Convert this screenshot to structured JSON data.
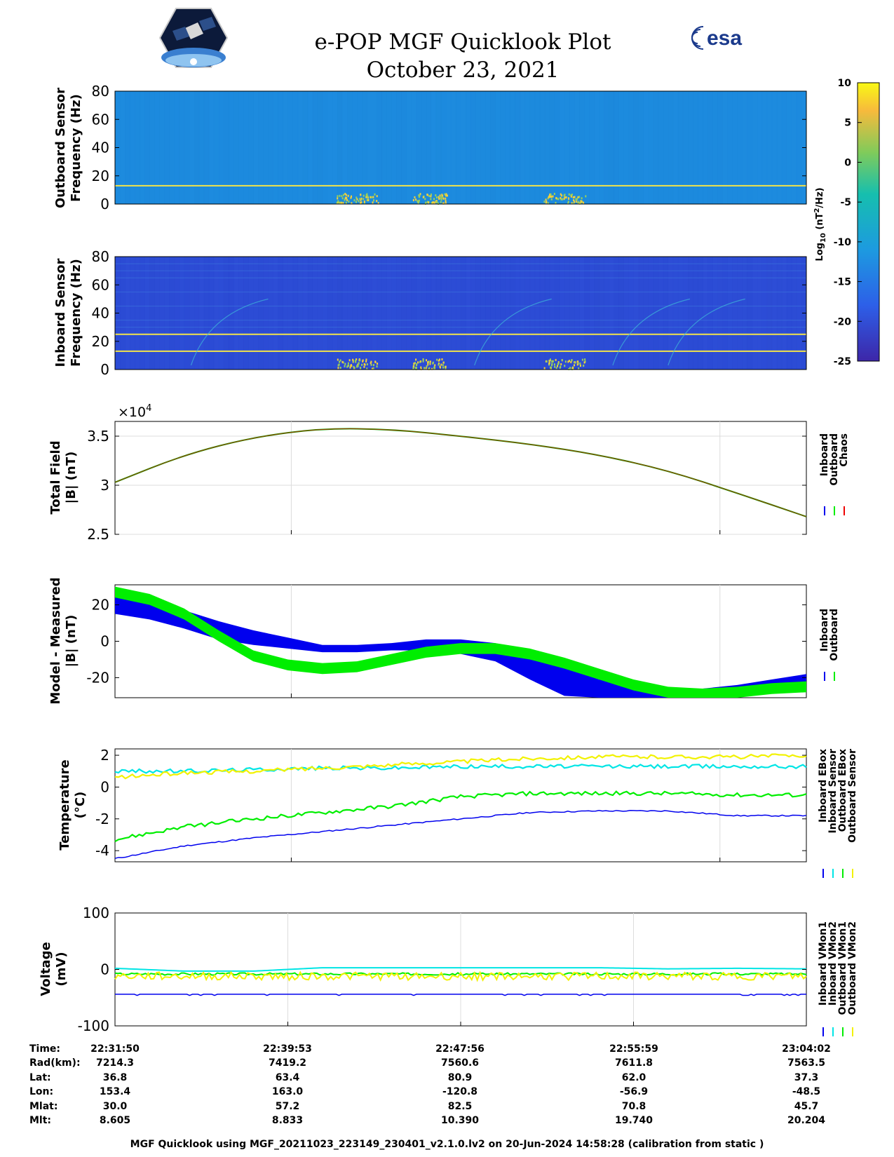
{
  "title": {
    "line1": "e-POP MGF Quicklook Plot",
    "line2": "October 23, 2021"
  },
  "logos": {
    "left": "cassiope-satellite-logo",
    "right_text": "esa"
  },
  "colors": {
    "inboard": "#0000ee",
    "outboard": "#00ee00",
    "chaos": "#ee0000",
    "cyan": "#00e5e5",
    "yellow": "#f2f200",
    "spec_bg_outboard": "#1e8de0",
    "spec_bg_inboard": "#2e4fd8"
  },
  "colorbar": {
    "label": "Log10 (nT2/Hz)",
    "label_main": "Log",
    "label_sub": "10",
    "label_units_a": " (nT",
    "label_units_sup": "2",
    "label_units_b": "/Hz)",
    "ticks": [
      10,
      5,
      0,
      -5,
      -10,
      -15,
      -20,
      -25
    ],
    "range": [
      -25,
      10
    ]
  },
  "chart_data": [
    {
      "type": "heatmap",
      "ylabel": [
        "Outboard Sensor",
        "Frequency (Hz)"
      ],
      "ylim": [
        0,
        80
      ],
      "yticks": [
        0,
        20,
        40,
        60,
        80
      ],
      "lines_hz": [
        13
      ]
    },
    {
      "type": "heatmap",
      "ylabel": [
        "Inboard Sensor",
        "Frequency (Hz)"
      ],
      "ylim": [
        0,
        80
      ],
      "yticks": [
        0,
        20,
        40,
        60,
        80
      ],
      "lines_hz": [
        13,
        25
      ]
    },
    {
      "type": "line",
      "ylabel": [
        "Total Field",
        "|B| (nT)"
      ],
      "multiplier": "×10",
      "multiplier_exp": "4",
      "ylim": [
        25000,
        36500
      ],
      "yticks": [
        25000,
        30000,
        35000
      ],
      "ytick_labels": [
        "2.5",
        "3",
        "3.5"
      ],
      "legend": [
        "Inboard",
        "Outboard",
        "Chaos"
      ],
      "x": [
        0,
        0.1,
        0.2,
        0.3,
        0.4,
        0.5,
        0.6,
        0.7,
        0.8,
        0.9,
        1.0
      ],
      "series": [
        {
          "name": "Chaos",
          "values": [
            30300,
            33100,
            34900,
            35800,
            35700,
            35000,
            34200,
            33100,
            31500,
            29200,
            26800
          ]
        }
      ]
    },
    {
      "type": "line",
      "ylabel": [
        "Model - Measured",
        "|B| (nT)"
      ],
      "ylim": [
        -31,
        31
      ],
      "yticks": [
        -20,
        0,
        20
      ],
      "legend": [
        "Inboard",
        "Outboard"
      ],
      "x": [
        0,
        0.05,
        0.1,
        0.15,
        0.2,
        0.25,
        0.3,
        0.35,
        0.4,
        0.45,
        0.5,
        0.55,
        0.6,
        0.65,
        0.7,
        0.75,
        0.8,
        0.85,
        0.9,
        0.95,
        1.0
      ],
      "series": [
        {
          "name": "Inboard",
          "values": [
            20,
            17,
            12,
            6,
            2,
            -1,
            -4,
            -4,
            -3,
            -2,
            -3,
            -6,
            -14,
            -22,
            -26,
            -28,
            -29,
            -28,
            -26,
            -24,
            -21
          ],
          "spread": [
            5,
            5,
            5,
            5,
            4,
            3,
            2,
            2,
            2,
            3,
            4,
            5,
            7,
            8,
            5,
            3,
            2,
            2,
            2,
            3,
            3
          ]
        },
        {
          "name": "Outboard",
          "values": [
            27,
            23,
            15,
            3,
            -8,
            -13,
            -15,
            -14,
            -10,
            -6,
            -4,
            -4,
            -7,
            -12,
            -18,
            -24,
            -28,
            -29,
            -28,
            -26,
            -25
          ],
          "spread": [
            3,
            3,
            3,
            3,
            3,
            3,
            3,
            3,
            3,
            3,
            3,
            3,
            3,
            3,
            3,
            3,
            3,
            3,
            3,
            3,
            3
          ]
        }
      ]
    },
    {
      "type": "line",
      "ylabel": [
        "Temperature",
        "(°C)"
      ],
      "ylim": [
        -4.7,
        2.4
      ],
      "yticks": [
        -4,
        -2,
        0,
        2
      ],
      "legend": [
        "Inboard EBox",
        "Inboard Sensor",
        "Outboard EBox",
        "Outboard Sensor"
      ],
      "x": [
        0,
        0.1,
        0.2,
        0.3,
        0.4,
        0.5,
        0.6,
        0.7,
        0.8,
        0.9,
        1.0
      ],
      "series": [
        {
          "name": "Inboard EBox",
          "values": [
            -4.5,
            -3.7,
            -3.2,
            -2.8,
            -2.4,
            -2.0,
            -1.6,
            -1.5,
            -1.5,
            -1.8,
            -1.8
          ]
        },
        {
          "name": "Inboard Sensor",
          "values": [
            1.0,
            1.0,
            1.1,
            1.2,
            1.2,
            1.3,
            1.3,
            1.3,
            1.3,
            1.3,
            1.3
          ]
        },
        {
          "name": "Outboard EBox",
          "values": [
            -3.3,
            -2.5,
            -2.0,
            -1.6,
            -1.2,
            -0.6,
            -0.4,
            -0.4,
            -0.4,
            -0.5,
            -0.5
          ]
        },
        {
          "name": "Outboard Sensor",
          "values": [
            0.6,
            0.9,
            1.0,
            1.2,
            1.4,
            1.6,
            1.8,
            1.9,
            1.9,
            1.9,
            2.0
          ]
        }
      ]
    },
    {
      "type": "line",
      "ylabel": [
        "Voltage",
        "(mV)"
      ],
      "ylim": [
        -100,
        100
      ],
      "yticks": [
        -100,
        0,
        100
      ],
      "legend": [
        "Inboard VMon1",
        "Inboard VMon2",
        "Outboard VMon1",
        "Outboard VMon2"
      ],
      "x": [
        0,
        0.1,
        0.2,
        0.3,
        0.4,
        0.5,
        0.6,
        0.7,
        0.8,
        0.9,
        1.0
      ],
      "series": [
        {
          "name": "Inboard VMon1",
          "values": [
            -44,
            -44,
            -44,
            -44,
            -44,
            -44,
            -44,
            -44,
            -44,
            -44,
            -44
          ]
        },
        {
          "name": "Inboard VMon2",
          "values": [
            2,
            -3,
            -3,
            3,
            3,
            3,
            3,
            3,
            1,
            2,
            1
          ]
        },
        {
          "name": "Outboard VMon1",
          "values": [
            -8,
            -8,
            -8,
            -8,
            -8,
            -8,
            -8,
            -8,
            -8,
            -8,
            -8
          ]
        },
        {
          "name": "Outboard VMon2",
          "values": [
            -12,
            -12,
            -12,
            -12,
            -12,
            -12,
            -12,
            -12,
            -12,
            -12,
            -12
          ]
        }
      ]
    }
  ],
  "orbit_table": {
    "row_labels": [
      "Time:",
      "Rad(km):",
      "Lat:",
      "Lon:",
      "Mlat:",
      "Mlt:"
    ],
    "columns": [
      [
        "22:31:50",
        "7214.3",
        "36.8",
        "153.4",
        "30.0",
        "8.605"
      ],
      [
        "22:39:53",
        "7419.2",
        "63.4",
        "163.0",
        "57.2",
        "8.833"
      ],
      [
        "22:47:56",
        "7560.6",
        "80.9",
        "-120.8",
        "82.5",
        "10.390"
      ],
      [
        "22:55:59",
        "7611.8",
        "62.0",
        "-56.9",
        "70.8",
        "19.740"
      ],
      [
        "23:04:02",
        "7563.5",
        "37.3",
        "-48.5",
        "45.7",
        "20.204"
      ]
    ]
  },
  "footer": "MGF Quicklook using MGF_20211023_223149_230401_v2.1.0.lv2 on 20-Jun-2024 14:58:28 (calibration from static )"
}
